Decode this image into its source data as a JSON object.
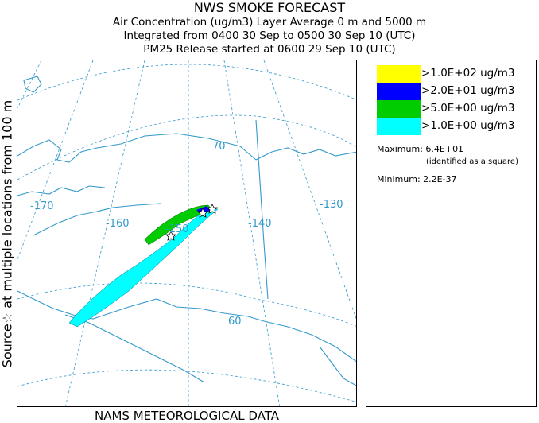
{
  "titles": {
    "line1": "NWS SMOKE FORECAST",
    "line2": "Air Concentration (ug/m3) Layer Average    0 m and  5000 m",
    "line3": "Integrated from 0400 30 Sep to 0500 30 Sep 10 (UTC)",
    "line4": "PM25 Release started at 0600 29 Sep 10 (UTC)"
  },
  "side_label": "Source☆  at multiple locations    from   100 m",
  "bottom_label": "NAMS METEOROLOGICAL DATA",
  "legend": {
    "entries": [
      {
        "label": ">1.0E+02 ug/m3",
        "color": "#ffff00"
      },
      {
        "label": ">2.0E+01 ug/m3",
        "color": "#0000ff"
      },
      {
        "label": ">5.0E+00 ug/m3",
        "color": "#00cc00"
      },
      {
        "label": ">1.0E+00 ug/m3",
        "color": "#00ffff"
      }
    ],
    "maximum": "Maximum: 6.4E+01",
    "maximum_note": "(identified as a square)",
    "minimum": "Minimum: 2.2E-37"
  },
  "map": {
    "longitude_labels": [
      "-170",
      "-160",
      "-150",
      "-140",
      "-130"
    ],
    "latitude_labels": [
      "70",
      "60"
    ],
    "graticule_color": "#3399cc",
    "coast_color": "#3399cc"
  }
}
